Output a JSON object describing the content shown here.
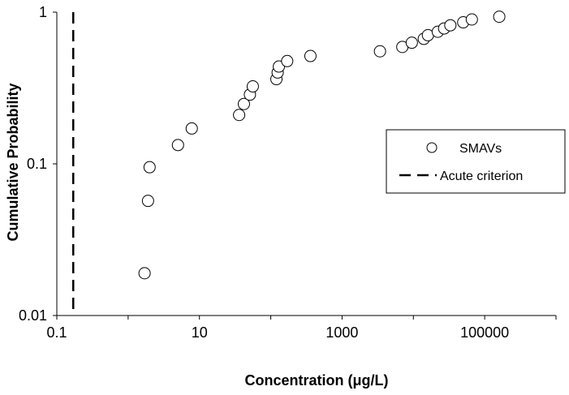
{
  "chart_data": {
    "type": "scatter",
    "xlabel": "Concentration (μg/L)",
    "ylabel": "Cumulative Probability",
    "x_scale": "log",
    "y_scale": "log",
    "xlim": [
      0.1,
      1000000
    ],
    "ylim": [
      0.01,
      1
    ],
    "x_ticks": [
      0.1,
      10,
      1000,
      100000
    ],
    "x_tick_labels": [
      "0.1",
      "10",
      "1000",
      "100000"
    ],
    "y_ticks": [
      0.01,
      0.1,
      1
    ],
    "y_tick_labels": [
      "0.01",
      "0.1",
      "1"
    ],
    "grid": false,
    "legend_position": "right",
    "series": [
      {
        "name": "SMAVs",
        "marker": "open-circle",
        "color": "#000000",
        "points": [
          [
            1.7,
            0.019
          ],
          [
            1.9,
            0.057
          ],
          [
            2.0,
            0.095
          ],
          [
            5.0,
            0.133
          ],
          [
            7.8,
            0.171
          ],
          [
            36,
            0.21
          ],
          [
            42,
            0.248
          ],
          [
            51,
            0.286
          ],
          [
            56,
            0.324
          ],
          [
            120,
            0.362
          ],
          [
            125,
            0.4
          ],
          [
            130,
            0.438
          ],
          [
            170,
            0.476
          ],
          [
            360,
            0.514
          ],
          [
            3400,
            0.552
          ],
          [
            7000,
            0.59
          ],
          [
            9500,
            0.629
          ],
          [
            14000,
            0.667
          ],
          [
            16000,
            0.705
          ],
          [
            22000,
            0.743
          ],
          [
            27000,
            0.781
          ],
          [
            33000,
            0.819
          ],
          [
            50000,
            0.857
          ],
          [
            66000,
            0.895
          ],
          [
            160000,
            0.933
          ]
        ]
      },
      {
        "name": "Acute criterion",
        "type": "vline",
        "style": "dashed",
        "color": "#000000",
        "x": 0.17
      }
    ]
  }
}
